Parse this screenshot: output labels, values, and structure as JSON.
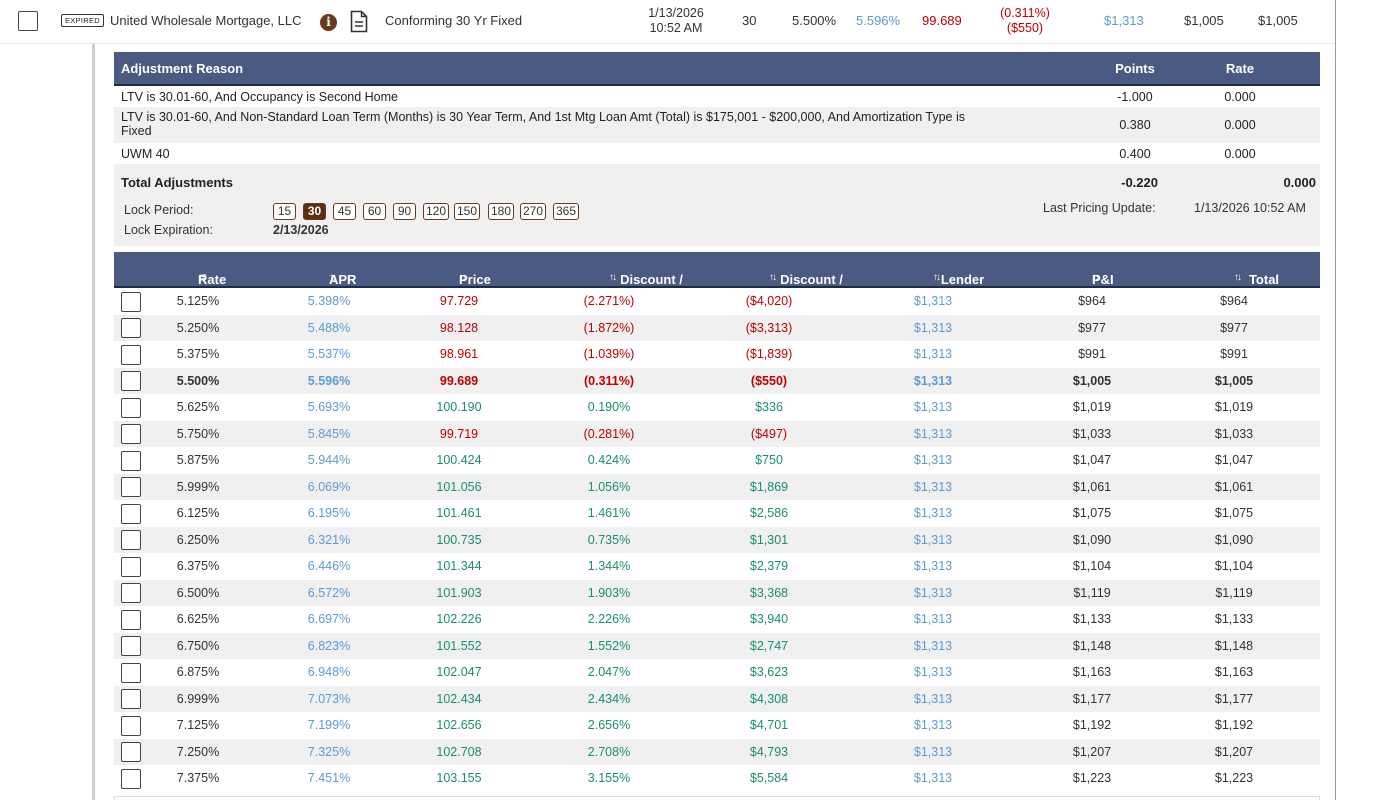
{
  "product": {
    "badge": "EXPIRED",
    "lender": "United Wholesale Mortgage, LLC",
    "name": "Conforming 30 Yr Fixed",
    "date": "1/13/2026",
    "time": "10:52 AM",
    "term": "30",
    "rate": "5.500%",
    "apr": "5.596%",
    "price": "99.689",
    "discount_pct": "(0.311%)",
    "discount_amt": "($550)",
    "lender_fees": "$1,313",
    "pi": "$1,005",
    "total_payment": "$1,005"
  },
  "adjustments": {
    "headers": {
      "reason": "Adjustment Reason",
      "points": "Points",
      "rate": "Rate"
    },
    "rows": [
      {
        "reason": "LTV is 30.01-60, And Occupancy is Second Home",
        "points": "-1.000",
        "rate": "0.000"
      },
      {
        "reason": "LTV is 30.01-60, And Non-Standard Loan Term (Months) is 30 Year Term, And 1st Mtg Loan Amt (Total) is $175,001 - $200,000, And Amortization Type is",
        "reason2": "Fixed",
        "points": "0.380",
        "rate": "0.000"
      },
      {
        "reason": "UWM 40",
        "points": "0.400",
        "rate": "0.000"
      }
    ],
    "total": {
      "label": "Total Adjustments",
      "points": "-0.220",
      "rate": "0.000"
    }
  },
  "lock": {
    "period_label": "Lock Period:",
    "expiration_label": "Lock Expiration:",
    "expiration": "2/13/2026",
    "periods": [
      "15",
      "30",
      "45",
      "60",
      "90",
      "120",
      "150",
      "180",
      "270",
      "365"
    ],
    "selected": "30",
    "last_update_label": "Last Pricing Update:",
    "last_update": "1/13/2026 10:52 AM"
  },
  "rate_table": {
    "headers": [
      "Rate",
      "APR",
      "Price",
      "Discount / Rebate %",
      "Discount / Rebate $",
      "Lender Fees",
      "P&I",
      "Total Payment"
    ],
    "rows": [
      [
        "5.125%",
        "5.398%",
        "97.729",
        "(2.271%)",
        "($4,020)",
        "$1,313",
        "$964",
        "$964"
      ],
      [
        "5.250%",
        "5.488%",
        "98.128",
        "(1.872%)",
        "($3,313)",
        "$1,313",
        "$977",
        "$977"
      ],
      [
        "5.375%",
        "5.537%",
        "98.961",
        "(1.039%)",
        "($1,839)",
        "$1,313",
        "$991",
        "$991"
      ],
      [
        "5.500%",
        "5.596%",
        "99.689",
        "(0.311%)",
        "($550)",
        "$1,313",
        "$1,005",
        "$1,005"
      ],
      [
        "5.625%",
        "5.693%",
        "100.190",
        "0.190%",
        "$336",
        "$1,313",
        "$1,019",
        "$1,019"
      ],
      [
        "5.750%",
        "5.845%",
        "99.719",
        "(0.281%)",
        "($497)",
        "$1,313",
        "$1,033",
        "$1,033"
      ],
      [
        "5.875%",
        "5.944%",
        "100.424",
        "0.424%",
        "$750",
        "$1,313",
        "$1,047",
        "$1,047"
      ],
      [
        "5.999%",
        "6.069%",
        "101.056",
        "1.056%",
        "$1,869",
        "$1,313",
        "$1,061",
        "$1,061"
      ],
      [
        "6.125%",
        "6.195%",
        "101.461",
        "1.461%",
        "$2,586",
        "$1,313",
        "$1,075",
        "$1,075"
      ],
      [
        "6.250%",
        "6.321%",
        "100.735",
        "0.735%",
        "$1,301",
        "$1,313",
        "$1,090",
        "$1,090"
      ],
      [
        "6.375%",
        "6.446%",
        "101.344",
        "1.344%",
        "$2,379",
        "$1,313",
        "$1,104",
        "$1,104"
      ],
      [
        "6.500%",
        "6.572%",
        "101.903",
        "1.903%",
        "$3,368",
        "$1,313",
        "$1,119",
        "$1,119"
      ],
      [
        "6.625%",
        "6.697%",
        "102.226",
        "2.226%",
        "$3,940",
        "$1,313",
        "$1,133",
        "$1,133"
      ],
      [
        "6.750%",
        "6.823%",
        "101.552",
        "1.552%",
        "$2,747",
        "$1,313",
        "$1,148",
        "$1,148"
      ],
      [
        "6.875%",
        "6.948%",
        "102.047",
        "2.047%",
        "$3,623",
        "$1,313",
        "$1,163",
        "$1,163"
      ],
      [
        "6.999%",
        "7.073%",
        "102.434",
        "2.434%",
        "$4,308",
        "$1,313",
        "$1,177",
        "$1,177"
      ],
      [
        "7.125%",
        "7.199%",
        "102.656",
        "2.656%",
        "$4,701",
        "$1,313",
        "$1,192",
        "$1,192"
      ],
      [
        "7.250%",
        "7.325%",
        "102.708",
        "2.708%",
        "$4,793",
        "$1,313",
        "$1,207",
        "$1,207"
      ],
      [
        "7.375%",
        "7.451%",
        "103.155",
        "3.155%",
        "$5,584",
        "$1,313",
        "$1,223",
        "$1,223"
      ]
    ],
    "current_rate": "5.500%"
  },
  "colors": {
    "header_bg": "#4a5a83",
    "negative": "#c00000",
    "positive": "#19906a",
    "link_blue": "#5b9bd5",
    "lock_selected": "#5b2d12"
  }
}
